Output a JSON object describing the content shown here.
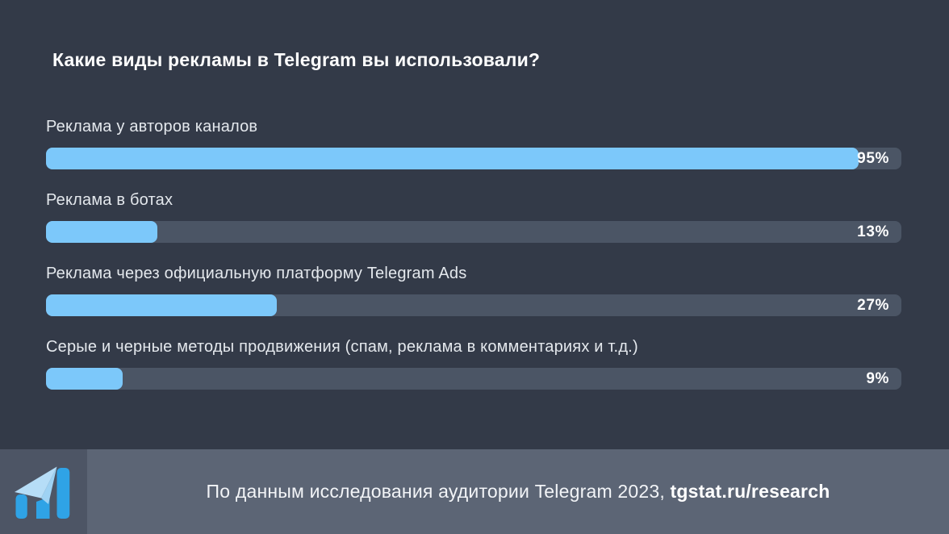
{
  "chart_data": {
    "type": "bar",
    "orientation": "horizontal",
    "title": "Какие виды рекламы в Telegram вы использовали?",
    "categories": [
      "Реклама у авторов каналов",
      "Реклама в ботах",
      "Реклама через официальную платформу Telegram Ads",
      "Серые и черные методы продвижения (спам, реклама в комментариях и т.д.)"
    ],
    "values": [
      95,
      13,
      27,
      9
    ],
    "value_labels": [
      "95%",
      "13%",
      "27%",
      "9%"
    ],
    "unit": "%",
    "xlim": [
      0,
      100
    ],
    "grid": false,
    "legend": false,
    "bar_color": "#7cc8fa",
    "track_color": "#4b5565"
  },
  "footer": {
    "source_text": "По данным исследования аудитории Telegram 2023, ",
    "source_link": "tgstat.ru/research",
    "logo_name": "tgstat-logo"
  },
  "colors": {
    "background": "#333a48",
    "footer_bar": "#5c6575",
    "logo_box": "#4d5565",
    "accent_blue": "#2fa3e6",
    "accent_light_blue": "#b6ddf7",
    "text_primary": "#ffffff",
    "text_secondary": "#e4e8ed"
  }
}
